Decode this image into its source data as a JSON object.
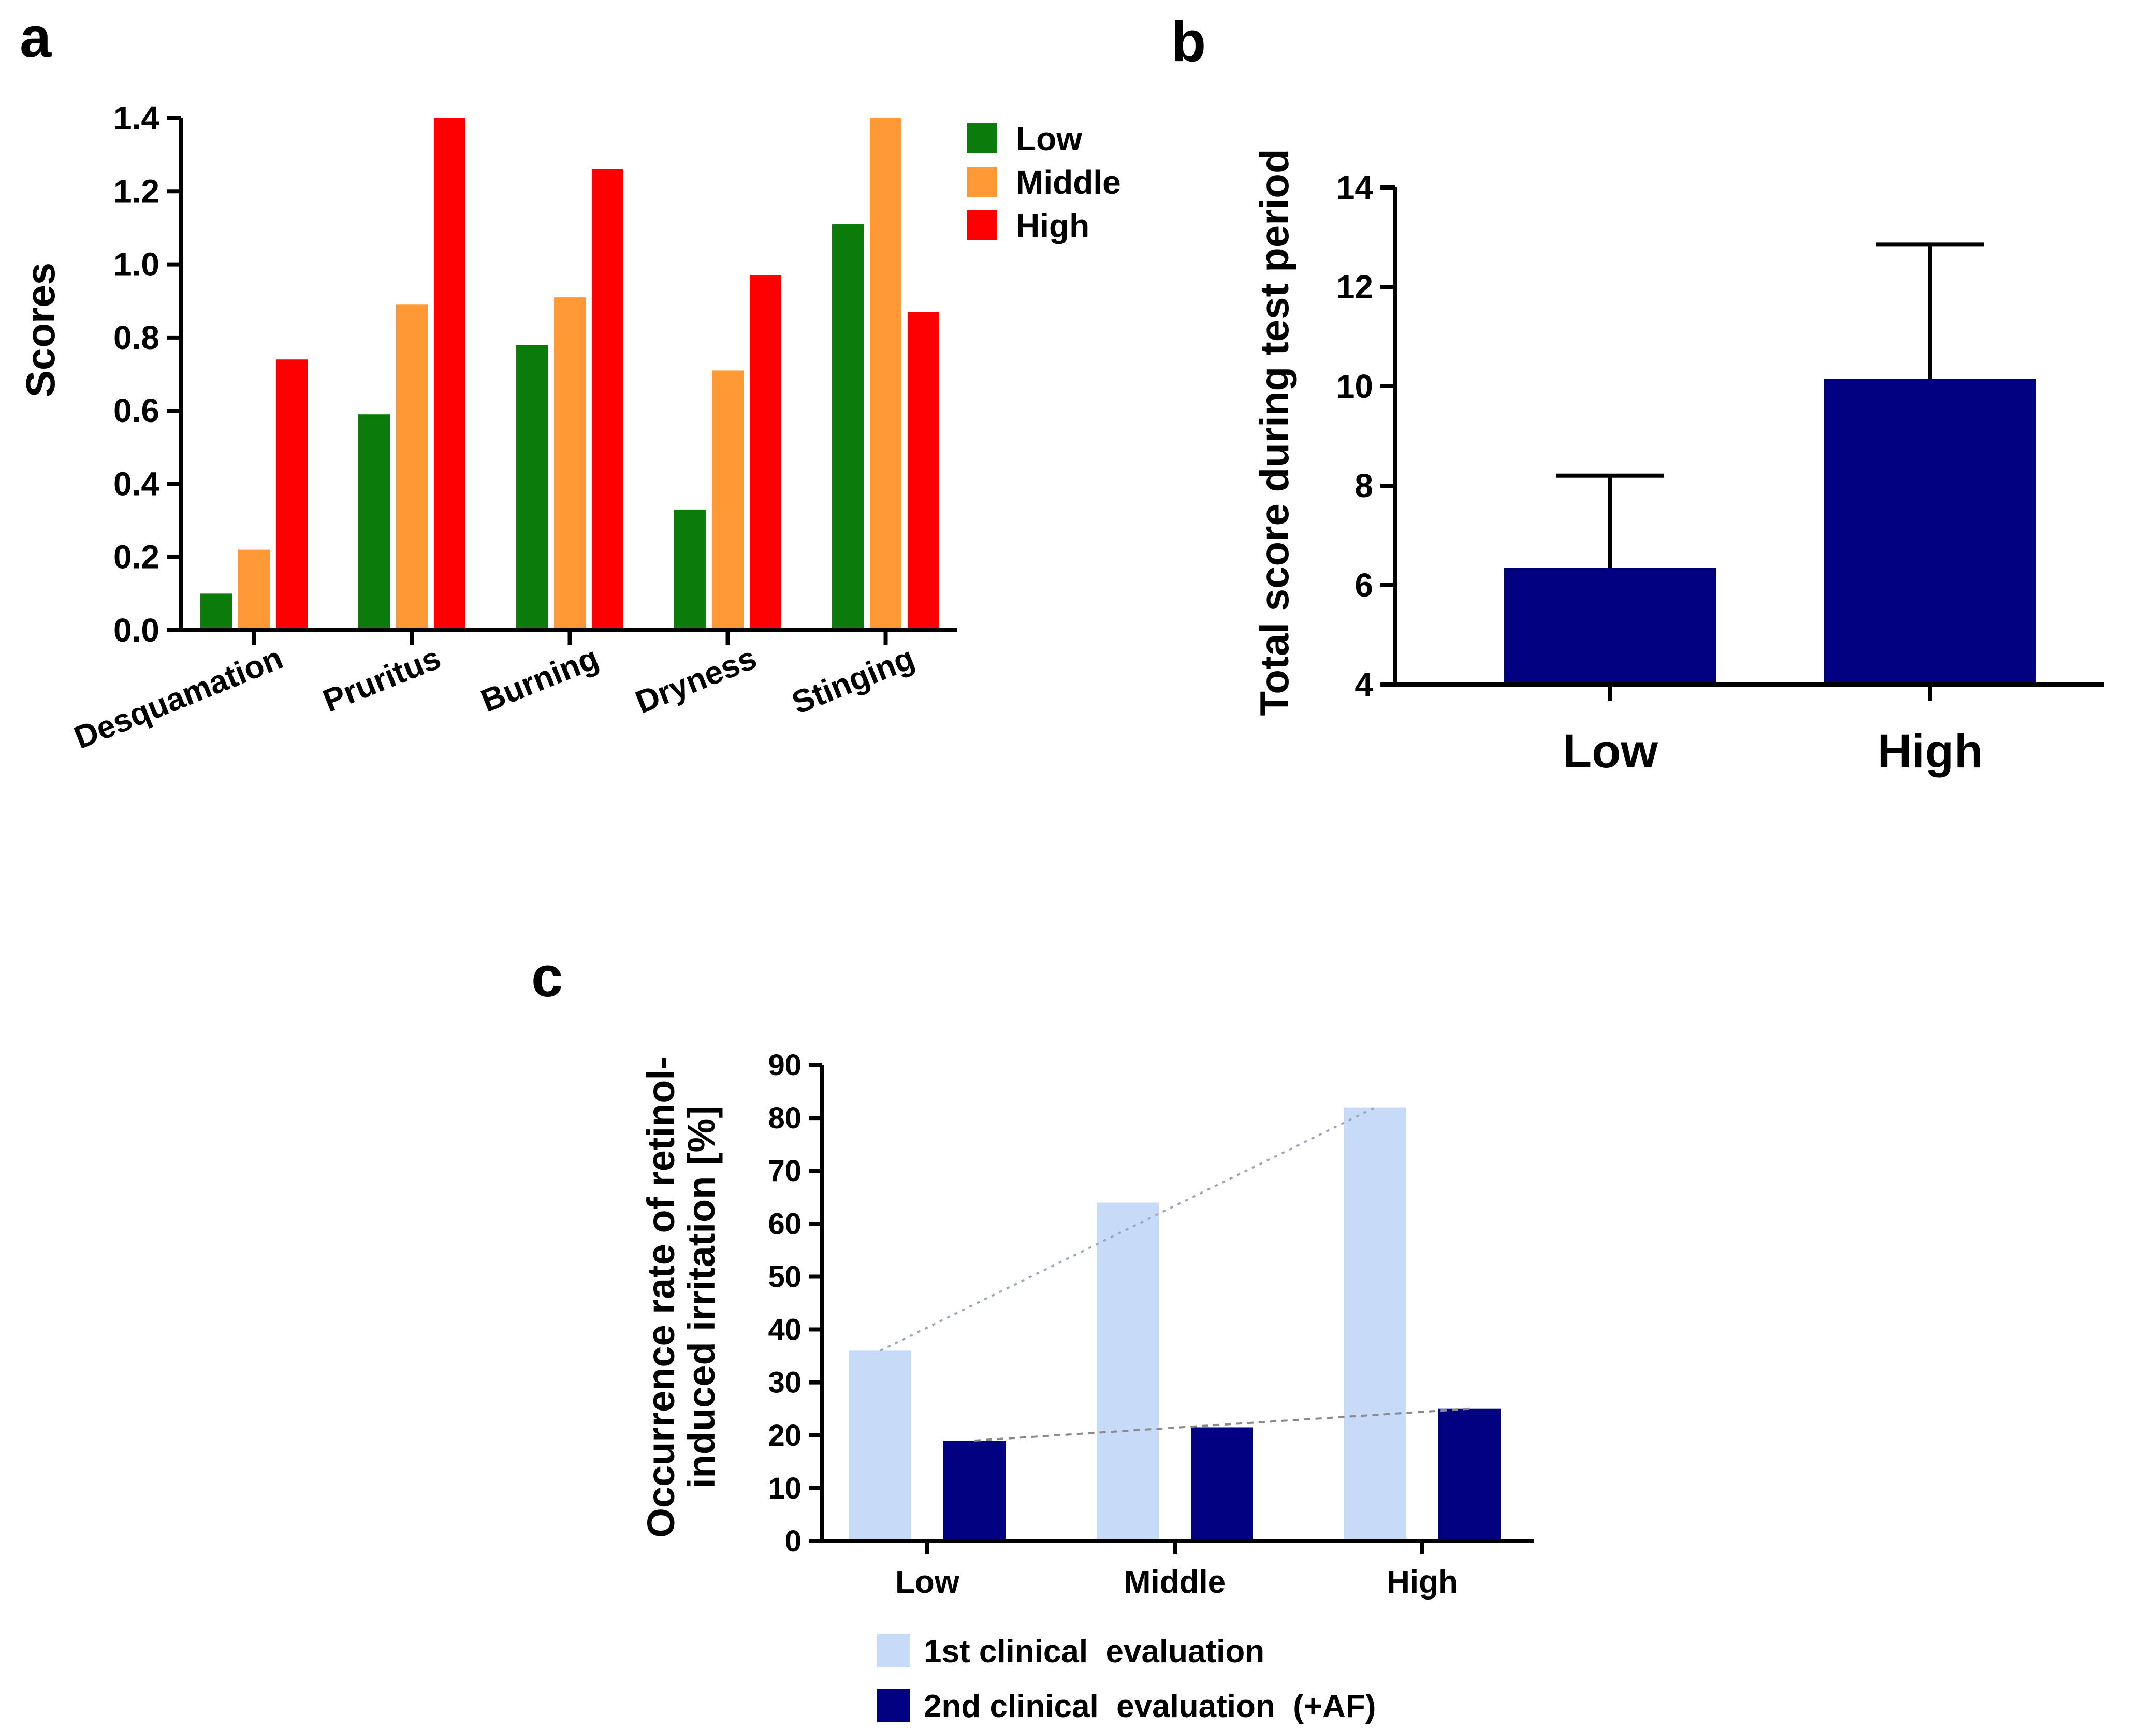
{
  "panels": {
    "a": "a",
    "b": "b",
    "c": "c"
  },
  "colors": {
    "low_green": "#0a7c0a",
    "middle_orange": "#ff9933",
    "high_red": "#ff0000",
    "navy": "#000080",
    "light_blue": "#c5dbf7"
  },
  "chart_data": [
    {
      "panel": "a",
      "type": "bar",
      "ylabel": "Scores",
      "xlabel": "",
      "ylim": [
        0,
        1.4
      ],
      "yticks": [
        "0.0",
        "0.2",
        "0.4",
        "0.6",
        "0.8",
        "1.0",
        "1.2",
        "1.4"
      ],
      "categories": [
        "Desquamation",
        "Pruritus",
        "Burning",
        "Dryness",
        "Stinging"
      ],
      "series": [
        {
          "name": "Low",
          "color": "#0a7c0a",
          "values": [
            0.1,
            0.59,
            0.78,
            0.33,
            1.11
          ]
        },
        {
          "name": "Middle",
          "color": "#ff9933",
          "values": [
            0.22,
            0.89,
            0.91,
            0.71,
            1.4
          ]
        },
        {
          "name": "High",
          "color": "#ff0000",
          "values": [
            0.74,
            1.4,
            1.26,
            0.97,
            0.87
          ]
        }
      ],
      "legend_position": "top-right",
      "grid": false
    },
    {
      "panel": "b",
      "type": "bar",
      "ylabel": "Total score during test period",
      "xlabel": "",
      "ylim": [
        4,
        14
      ],
      "yticks": [
        "4",
        "6",
        "8",
        "10",
        "12",
        "14"
      ],
      "categories": [
        "Low",
        "High"
      ],
      "values": [
        6.35,
        10.15
      ],
      "error_upper": [
        8.2,
        12.85
      ],
      "color": "#000080",
      "grid": false
    },
    {
      "panel": "c",
      "type": "bar",
      "ylabel_lines": [
        "Occurrence rate of retinol-",
        "induced irritation [%]"
      ],
      "xlabel": "",
      "ylim": [
        0,
        90
      ],
      "yticks": [
        "0",
        "10",
        "20",
        "30",
        "40",
        "50",
        "60",
        "70",
        "80",
        "90"
      ],
      "categories": [
        "Low",
        "Middle",
        "High"
      ],
      "series": [
        {
          "name": "1st clinical  evaluation",
          "color": "#c5dbf7",
          "values": [
            36,
            64,
            82
          ]
        },
        {
          "name": "2nd clinical  evaluation  (+AF)",
          "color": "#000080",
          "values": [
            19,
            21.5,
            25
          ]
        }
      ],
      "trend_lines": true,
      "legend_position": "bottom",
      "grid": false
    }
  ]
}
